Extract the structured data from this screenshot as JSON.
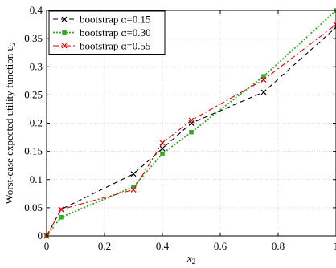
{
  "chart_data": {
    "type": "line",
    "xlabel": "x",
    "xlabel_sub": "2",
    "ylabel": "Worst-case expected utility function u",
    "ylabel_sub": "2",
    "xlim": [
      0,
      1
    ],
    "ylim": [
      0,
      0.4
    ],
    "xticks": [
      0,
      0.2,
      0.4,
      0.6,
      0.8,
      1
    ],
    "xtick_labels": [
      "0",
      "0.2",
      "0.4",
      "0.6",
      "0.8",
      "1"
    ],
    "yticks": [
      0,
      0.05,
      0.1,
      0.15,
      0.2,
      0.25,
      0.3,
      0.35,
      0.4
    ],
    "ytick_labels": [
      "0",
      "0.05",
      "0.1",
      "0.15",
      "0.2",
      "0.25",
      "0.3",
      "0.35",
      "0.4"
    ],
    "grid": true,
    "legend_position": "top-left",
    "series": [
      {
        "name": "bootstrap α=0.15",
        "color": "#000000",
        "dash": "6,4",
        "marker": "x",
        "x": [
          0,
          0.05,
          0.3,
          0.4,
          0.5,
          0.75,
          1
        ],
        "y": [
          0,
          0.047,
          0.11,
          0.155,
          0.2,
          0.255,
          0.37
        ]
      },
      {
        "name": "bootstrap α=0.30",
        "color": "#33aa22",
        "dash": "2,2",
        "marker": "square",
        "x": [
          0,
          0.05,
          0.3,
          0.4,
          0.5,
          0.75,
          1
        ],
        "y": [
          0,
          0.033,
          0.087,
          0.146,
          0.184,
          0.283,
          0.4
        ]
      },
      {
        "name": "bootstrap α=0.55",
        "color": "#e00000",
        "dash": "7,3,2,3",
        "marker": "x",
        "x": [
          0,
          0.05,
          0.3,
          0.4,
          0.5,
          0.75,
          1
        ],
        "y": [
          0,
          0.047,
          0.082,
          0.165,
          0.205,
          0.277,
          0.375
        ]
      }
    ]
  }
}
